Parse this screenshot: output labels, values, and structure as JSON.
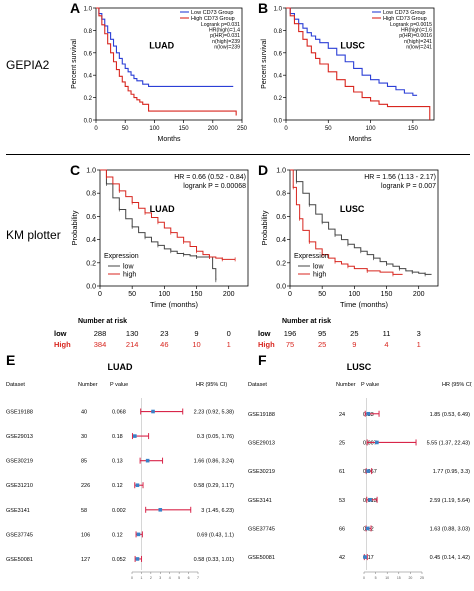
{
  "labels": {
    "A": "A",
    "B": "B",
    "C": "C",
    "D": "D",
    "E": "E",
    "F": "F"
  },
  "sections": {
    "gepia": "GEPIA2",
    "km": "KM plotter"
  },
  "colors": {
    "low": "#2b3fd6",
    "high": "#d8261f",
    "km_low": "#444444",
    "km_high": "#d8261f",
    "hr_bar": "#d8264a",
    "hr_point": "#3a82c8"
  },
  "km_risk": {
    "title": "Number at risk",
    "c": {
      "low_label": "low",
      "high_label": "High",
      "low": [
        "288",
        "130",
        "23",
        "9",
        "0"
      ],
      "high": [
        "384",
        "214",
        "46",
        "10",
        "1"
      ]
    },
    "d": {
      "low_label": "low",
      "high_label": "High",
      "low": [
        "196",
        "95",
        "25",
        "11",
        "3"
      ],
      "high": [
        "75",
        "25",
        "9",
        "4",
        "1"
      ]
    }
  },
  "chart_data": [
    {
      "id": "A",
      "type": "line",
      "title": "LUAD",
      "xlabel": "Months",
      "ylabel": "Percent survival",
      "xlim": [
        0,
        250
      ],
      "ylim": [
        0,
        1
      ],
      "xticks": [
        0,
        50,
        100,
        150,
        200,
        250
      ],
      "yticks": [
        0,
        0.2,
        0.4,
        0.6,
        0.8,
        1.0
      ],
      "legend": [
        "Low CD73 Group",
        "High CD73 Group"
      ],
      "stats": [
        "Logrank p=0.031",
        "HR(high)=1.4",
        "p(HR)=0.031",
        "n(high)=239",
        "n(low)=239"
      ],
      "series": [
        {
          "name": "Low CD73 Group",
          "x": [
            0,
            5,
            10,
            15,
            20,
            25,
            30,
            35,
            40,
            45,
            50,
            55,
            60,
            65,
            70,
            80,
            90,
            100,
            120,
            150,
            180,
            200,
            235
          ],
          "y": [
            1,
            0.95,
            0.9,
            0.84,
            0.78,
            0.72,
            0.66,
            0.6,
            0.55,
            0.5,
            0.46,
            0.43,
            0.4,
            0.37,
            0.35,
            0.32,
            0.3,
            0.3,
            0.3,
            0.3,
            0.3,
            0.3,
            0.3
          ]
        },
        {
          "name": "High CD73 Group",
          "x": [
            0,
            5,
            10,
            15,
            20,
            25,
            30,
            35,
            40,
            45,
            50,
            55,
            60,
            65,
            70,
            75,
            80,
            90,
            100,
            130,
            160,
            200,
            240
          ],
          "y": [
            1,
            0.93,
            0.85,
            0.77,
            0.68,
            0.6,
            0.52,
            0.45,
            0.39,
            0.34,
            0.3,
            0.26,
            0.23,
            0.2,
            0.18,
            0.16,
            0.14,
            0.08,
            0.08,
            0.08,
            0.08,
            0.08,
            0.04
          ]
        }
      ]
    },
    {
      "id": "B",
      "type": "line",
      "title": "LUSC",
      "xlabel": "Months",
      "ylabel": "Percent survival",
      "xlim": [
        0,
        175
      ],
      "ylim": [
        0,
        1
      ],
      "xticks": [
        0,
        50,
        100,
        150
      ],
      "yticks": [
        0,
        0.2,
        0.4,
        0.6,
        0.8,
        1.0
      ],
      "legend": [
        "Low CD73 Group",
        "High CD73 Group"
      ],
      "stats": [
        "Logrank p=0.0015",
        "HR(high)=1.6",
        "p(HR)=0.0016",
        "n(high)=241",
        "n(low)=241"
      ],
      "series": [
        {
          "name": "Low CD73 Group",
          "x": [
            0,
            5,
            10,
            15,
            20,
            25,
            30,
            35,
            40,
            50,
            60,
            70,
            80,
            90,
            100,
            110,
            120,
            130,
            140,
            150,
            155
          ],
          "y": [
            1,
            0.95,
            0.9,
            0.86,
            0.82,
            0.78,
            0.75,
            0.72,
            0.69,
            0.64,
            0.58,
            0.52,
            0.46,
            0.4,
            0.36,
            0.33,
            0.3,
            0.27,
            0.24,
            0.22,
            0.22
          ]
        },
        {
          "name": "High CD73 Group",
          "x": [
            0,
            5,
            10,
            15,
            20,
            25,
            30,
            35,
            40,
            50,
            60,
            70,
            80,
            90,
            100,
            110,
            120,
            130,
            140,
            150,
            160,
            170
          ],
          "y": [
            1,
            0.93,
            0.86,
            0.79,
            0.72,
            0.66,
            0.6,
            0.55,
            0.5,
            0.43,
            0.36,
            0.3,
            0.25,
            0.2,
            0.17,
            0.14,
            0.12,
            0.12,
            0.12,
            0.12,
            0.12,
            0
          ]
        }
      ]
    },
    {
      "id": "C",
      "type": "line",
      "title": "LUAD",
      "xlabel": "Time (months)",
      "ylabel": "Probability",
      "xlim": [
        0,
        230
      ],
      "ylim": [
        0,
        1
      ],
      "xticks": [
        0,
        50,
        100,
        150,
        200
      ],
      "yticks": [
        0,
        0.2,
        0.4,
        0.6,
        0.8,
        1.0
      ],
      "stats": [
        "HR = 0.66 (0.52 - 0.84)",
        "logrank P = 0.00068"
      ],
      "legend_title": "Expression",
      "legend": [
        "low",
        "high"
      ],
      "series": [
        {
          "name": "low",
          "x": [
            0,
            10,
            20,
            30,
            40,
            50,
            60,
            70,
            80,
            90,
            100,
            110,
            120,
            130,
            140,
            150,
            160,
            170,
            175,
            180
          ],
          "y": [
            1,
            0.88,
            0.76,
            0.66,
            0.58,
            0.51,
            0.46,
            0.42,
            0.38,
            0.35,
            0.32,
            0.3,
            0.28,
            0.27,
            0.26,
            0.25,
            0.25,
            0.25,
            0.15,
            0.05
          ]
        },
        {
          "name": "high",
          "x": [
            0,
            10,
            20,
            30,
            40,
            50,
            60,
            70,
            80,
            90,
            100,
            110,
            120,
            130,
            140,
            150,
            160,
            170,
            180,
            190,
            200,
            210
          ],
          "y": [
            1,
            0.94,
            0.88,
            0.82,
            0.77,
            0.72,
            0.67,
            0.63,
            0.59,
            0.55,
            0.5,
            0.46,
            0.42,
            0.38,
            0.34,
            0.3,
            0.27,
            0.25,
            0.24,
            0.23,
            0.23,
            0.23
          ]
        }
      ]
    },
    {
      "id": "D",
      "type": "line",
      "title": "LUSC",
      "xlabel": "Time (months)",
      "ylabel": "Probability",
      "xlim": [
        0,
        230
      ],
      "ylim": [
        0,
        1
      ],
      "xticks": [
        0,
        50,
        100,
        150,
        200
      ],
      "yticks": [
        0,
        0.2,
        0.4,
        0.6,
        0.8,
        1.0
      ],
      "stats": [
        "HR = 1.56 (1.13 - 2.17)",
        "logrank P = 0.007"
      ],
      "legend_title": "Expression",
      "legend": [
        "low",
        "high"
      ],
      "series": [
        {
          "name": "low",
          "x": [
            0,
            10,
            20,
            30,
            40,
            50,
            60,
            70,
            80,
            90,
            100,
            110,
            120,
            130,
            140,
            150,
            160,
            170,
            180,
            190,
            200,
            210,
            220
          ],
          "y": [
            1,
            0.9,
            0.8,
            0.7,
            0.62,
            0.55,
            0.49,
            0.44,
            0.4,
            0.36,
            0.33,
            0.3,
            0.27,
            0.24,
            0.21,
            0.19,
            0.17,
            0.15,
            0.13,
            0.12,
            0.11,
            0.1,
            0.1
          ]
        },
        {
          "name": "high",
          "x": [
            0,
            5,
            10,
            15,
            20,
            30,
            40,
            50,
            60,
            70,
            80,
            90,
            100,
            120,
            140,
            160,
            175
          ],
          "y": [
            1,
            0.85,
            0.7,
            0.58,
            0.48,
            0.38,
            0.32,
            0.27,
            0.24,
            0.21,
            0.19,
            0.17,
            0.15,
            0.13,
            0.12,
            0.1,
            0.1
          ]
        }
      ]
    },
    {
      "id": "E",
      "type": "forest",
      "title": "LUAD",
      "headers": {
        "dataset": "Dataset",
        "number": "Number",
        "p": "P value",
        "hr": "HR (95% CI)"
      },
      "xlim": [
        0,
        7
      ],
      "xticks": [
        0,
        1,
        2,
        3,
        4,
        5,
        6,
        7
      ],
      "ref": 1,
      "rows": [
        {
          "dataset": "GSE19188",
          "number": "40",
          "p": "0.068",
          "hr": 2.23,
          "lo": 0.92,
          "hi": 5.38,
          "label": "2.23 (0.92, 5.38)"
        },
        {
          "dataset": "GSE29013",
          "number": "30",
          "p": "0.18",
          "hr": 0.3,
          "lo": 0.05,
          "hi": 1.76,
          "label": "0.3 (0.05, 1.76)"
        },
        {
          "dataset": "GSE30219",
          "number": "85",
          "p": "0.13",
          "hr": 1.66,
          "lo": 0.86,
          "hi": 3.24,
          "label": "1.66 (0.86, 3.24)"
        },
        {
          "dataset": "GSE31210",
          "number": "226",
          "p": "0.12",
          "hr": 0.58,
          "lo": 0.29,
          "hi": 1.17,
          "label": "0.58 (0.29, 1.17)"
        },
        {
          "dataset": "GSE3141",
          "number": "58",
          "p": "0.002",
          "hr": 3,
          "lo": 1.45,
          "hi": 6.23,
          "label": "3 (1.45, 6.23)"
        },
        {
          "dataset": "GSE37745",
          "number": "106",
          "p": "0.12",
          "hr": 0.69,
          "lo": 0.43,
          "hi": 1.1,
          "label": "0.69 (0.43, 1.1)"
        },
        {
          "dataset": "GSE50081",
          "number": "127",
          "p": "0.052",
          "hr": 0.58,
          "lo": 0.33,
          "hi": 1.01,
          "label": "0.58 (0.33, 1.01)"
        }
      ]
    },
    {
      "id": "F",
      "type": "forest",
      "title": "LUSC",
      "headers": {
        "dataset": "Dataset",
        "number": "Number",
        "p": "P value",
        "hr": "HR (95% CI)"
      },
      "xlim": [
        0,
        25
      ],
      "xticks": [
        0,
        5,
        10,
        15,
        20,
        25
      ],
      "ref": 1,
      "rows": [
        {
          "dataset": "GSE19188",
          "number": "24",
          "p": "0.33",
          "hr": 1.85,
          "lo": 0.53,
          "hi": 6.49,
          "label": "1.85 (0.53, 6.49)"
        },
        {
          "dataset": "GSE29013",
          "number": "25",
          "p": "0.007",
          "hr": 5.55,
          "lo": 1.37,
          "hi": 22.43,
          "label": "5.55 (1.37, 22.43)"
        },
        {
          "dataset": "GSE30219",
          "number": "61",
          "p": "0.067",
          "hr": 1.77,
          "lo": 0.95,
          "hi": 3.3,
          "label": "1.77 (0.95, 3.3)"
        },
        {
          "dataset": "GSE3141",
          "number": "53",
          "p": "0.013",
          "hr": 2.59,
          "lo": 1.19,
          "hi": 5.64,
          "label": "2.59 (1.19, 5.64)"
        },
        {
          "dataset": "GSE37745",
          "number": "66",
          "p": "0.12",
          "hr": 1.63,
          "lo": 0.88,
          "hi": 3.03,
          "label": "1.63 (0.88, 3.03)"
        },
        {
          "dataset": "GSE50081",
          "number": "42",
          "p": "0.17",
          "hr": 0.45,
          "lo": 0.14,
          "hi": 1.42,
          "label": "0.45 (0.14, 1.42)"
        }
      ]
    }
  ]
}
